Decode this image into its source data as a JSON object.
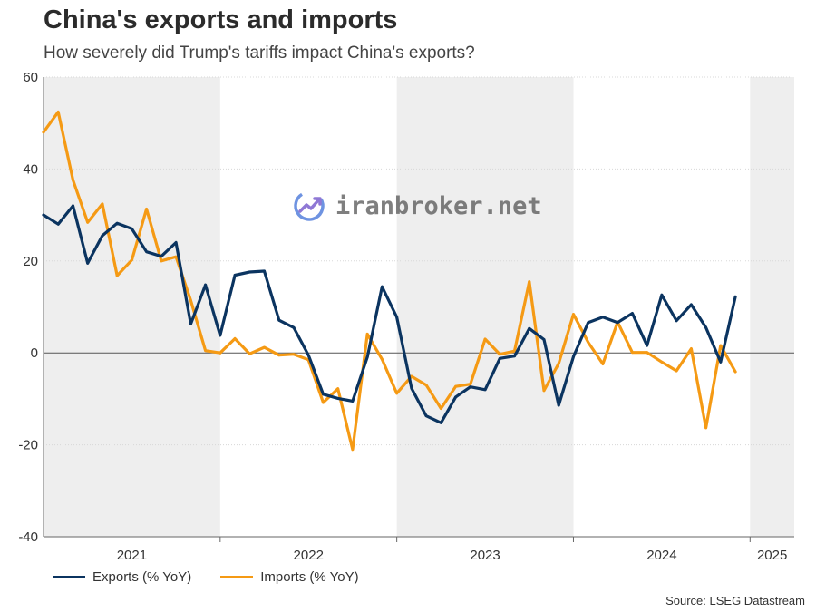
{
  "title": "China's exports and imports",
  "subtitle": "How severely did Trump's tariffs impact China's exports?",
  "source": "Source: LSEG Datastream",
  "watermark": "iranbroker.net",
  "colors": {
    "exports": "#0b3460",
    "imports": "#f59a14",
    "band": "#eeeeee",
    "grid": "#d8d8d8",
    "zero_line": "#555555"
  },
  "chart_data": {
    "type": "line",
    "title": "China's exports and imports",
    "subtitle": "How severely did Trump's tariffs impact China's exports?",
    "ylim": [
      -40,
      60
    ],
    "yticks": [
      -40,
      -20,
      0,
      20,
      40,
      60
    ],
    "x_start": "2021-01",
    "x_end": "2025-04",
    "year_labels": [
      "2021",
      "2022",
      "2023",
      "2024",
      "2025"
    ],
    "shaded_years": [
      "2021",
      "2023",
      "2025"
    ],
    "grid": true,
    "legend_position": "bottom-left",
    "series": [
      {
        "name": "Exports (% YoY)",
        "color": "#0b3460",
        "points": [
          [
            "2021-01",
            30
          ],
          [
            "2021-02",
            28
          ],
          [
            "2021-03",
            32
          ],
          [
            "2021-04",
            19.5
          ],
          [
            "2021-05",
            25.5
          ],
          [
            "2021-06",
            28.2
          ],
          [
            "2021-07",
            27
          ],
          [
            "2021-08",
            22
          ],
          [
            "2021-09",
            21
          ],
          [
            "2021-10",
            24
          ],
          [
            "2021-11",
            6.3
          ],
          [
            "2021-12",
            14.8
          ],
          [
            "2022-01",
            3.8
          ],
          [
            "2022-02",
            16.9
          ],
          [
            "2022-03",
            17.6
          ],
          [
            "2022-04",
            17.8
          ],
          [
            "2022-05",
            7.1
          ],
          [
            "2022-06",
            5.5
          ],
          [
            "2022-07",
            -0.5
          ],
          [
            "2022-08",
            -9
          ],
          [
            "2022-09",
            -9.9
          ],
          [
            "2022-10",
            -10.5
          ],
          [
            "2022-11",
            -0.9
          ],
          [
            "2022-12",
            14.4
          ],
          [
            "2023-01",
            7.8
          ],
          [
            "2023-02",
            -7.7
          ],
          [
            "2023-03",
            -13.7
          ],
          [
            "2023-04",
            -15.2
          ],
          [
            "2023-05",
            -9.6
          ],
          [
            "2023-06",
            -7.4
          ],
          [
            "2023-07",
            -8
          ],
          [
            "2023-08",
            -1.2
          ],
          [
            "2023-09",
            -0.7
          ],
          [
            "2023-10",
            5.3
          ],
          [
            "2023-11",
            2.9
          ],
          [
            "2023-12",
            -11.4
          ],
          [
            "2024-01",
            -0.8
          ],
          [
            "2024-02",
            6.6
          ],
          [
            "2024-03",
            7.8
          ],
          [
            "2024-04",
            6.6
          ],
          [
            "2024-05",
            8.6
          ],
          [
            "2024-06",
            1.6
          ],
          [
            "2024-07",
            12.6
          ],
          [
            "2024-08",
            7
          ],
          [
            "2024-09",
            10.5
          ],
          [
            "2024-10",
            5.5
          ],
          [
            "2024-11",
            -2
          ],
          [
            "2024-12",
            12.2
          ]
        ]
      },
      {
        "name": "Imports (% YoY)",
        "color": "#f59a14",
        "points": [
          [
            "2021-01",
            48
          ],
          [
            "2021-02",
            52.4
          ],
          [
            "2021-03",
            37.6
          ],
          [
            "2021-04",
            28.4
          ],
          [
            "2021-05",
            32.4
          ],
          [
            "2021-06",
            16.8
          ],
          [
            "2021-07",
            20.2
          ],
          [
            "2021-08",
            31.3
          ],
          [
            "2021-09",
            20
          ],
          [
            "2021-10",
            20.9
          ],
          [
            "2021-11",
            11.4
          ],
          [
            "2021-12",
            0.5
          ],
          [
            "2022-01",
            0
          ],
          [
            "2022-02",
            3.1
          ],
          [
            "2022-03",
            -0.2
          ],
          [
            "2022-04",
            1.2
          ],
          [
            "2022-05",
            -0.5
          ],
          [
            "2022-06",
            -0.3
          ],
          [
            "2022-07",
            -1.5
          ],
          [
            "2022-08",
            -10.8
          ],
          [
            "2022-09",
            -7.8
          ],
          [
            "2022-10",
            -21
          ],
          [
            "2022-11",
            4.1
          ],
          [
            "2022-12",
            -1.4
          ],
          [
            "2023-01",
            -8.8
          ],
          [
            "2023-02",
            -5.1
          ],
          [
            "2023-03",
            -7
          ],
          [
            "2023-04",
            -12.1
          ],
          [
            "2023-05",
            -7.3
          ],
          [
            "2023-06",
            -6.8
          ],
          [
            "2023-07",
            3
          ],
          [
            "2023-08",
            -0.3
          ],
          [
            "2023-09",
            0.4
          ],
          [
            "2023-10",
            15.5
          ],
          [
            "2023-11",
            -8.2
          ],
          [
            "2023-12",
            -2.3
          ],
          [
            "2024-01",
            8.4
          ],
          [
            "2024-02",
            2.3
          ],
          [
            "2024-03",
            -2.4
          ],
          [
            "2024-04",
            6.7
          ],
          [
            "2024-05",
            0.1
          ],
          [
            "2024-06",
            0.1
          ],
          [
            "2024-07",
            -2
          ],
          [
            "2024-08",
            -3.9
          ],
          [
            "2024-09",
            0.9
          ],
          [
            "2024-10",
            -16.3
          ],
          [
            "2024-11",
            1.6
          ],
          [
            "2024-12",
            -4.1
          ]
        ]
      }
    ]
  }
}
